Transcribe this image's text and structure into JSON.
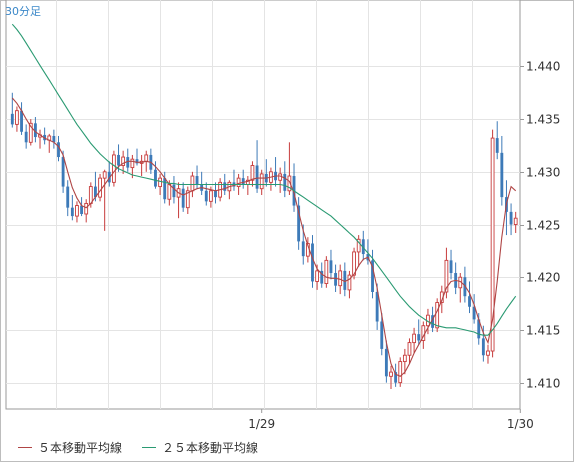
{
  "timeframe_label": "30分足",
  "legend": {
    "ma5": "５本移動平均線",
    "ma25": "２５本移動平均線"
  },
  "colors": {
    "up": "#c73b3b",
    "down": "#3d7ab8",
    "ma5": "#b04545",
    "ma25": "#2a9a72",
    "grid": "#e4e4e4",
    "axis": "#9a9a9a"
  },
  "chart_data": {
    "type": "candlestick",
    "yticks": [
      "1.440",
      "1.435",
      "1.430",
      "1.425",
      "1.420",
      "1.415",
      "1.410"
    ],
    "ylim": [
      1.4075,
      1.4463
    ],
    "xticks": [
      {
        "label": "1/29",
        "index": 54
      },
      {
        "label": "1/30",
        "index": 110
      }
    ],
    "grid": true,
    "legend_placement": "bottom",
    "candles": [
      [
        1.4355,
        1.4375,
        1.4342,
        1.4345
      ],
      [
        1.4345,
        1.4362,
        1.4338,
        1.4358
      ],
      [
        1.4358,
        1.4366,
        1.4335,
        1.4338
      ],
      [
        1.4338,
        1.4345,
        1.4322,
        1.4328
      ],
      [
        1.4328,
        1.435,
        1.4325,
        1.4346
      ],
      [
        1.4346,
        1.4352,
        1.4328,
        1.4333
      ],
      [
        1.4333,
        1.434,
        1.4322,
        1.4335
      ],
      [
        1.4335,
        1.4342,
        1.4326,
        1.433
      ],
      [
        1.433,
        1.4336,
        1.4318,
        1.4334
      ],
      [
        1.4334,
        1.434,
        1.4322,
        1.4328
      ],
      [
        1.4328,
        1.4334,
        1.431,
        1.4314
      ],
      [
        1.4314,
        1.432,
        1.428,
        1.4286
      ],
      [
        1.4286,
        1.4292,
        1.4258,
        1.4266
      ],
      [
        1.4266,
        1.4278,
        1.4254,
        1.4258
      ],
      [
        1.4258,
        1.4272,
        1.4252,
        1.4268
      ],
      [
        1.4268,
        1.4276,
        1.4258,
        1.426
      ],
      [
        1.426,
        1.4274,
        1.4252,
        1.427
      ],
      [
        1.427,
        1.429,
        1.4266,
        1.4286
      ],
      [
        1.4286,
        1.43,
        1.4272,
        1.4276
      ],
      [
        1.4276,
        1.4298,
        1.4272,
        1.4294
      ],
      [
        1.4294,
        1.4302,
        1.4244,
        1.43
      ],
      [
        1.43,
        1.431,
        1.4286,
        1.429
      ],
      [
        1.429,
        1.432,
        1.4286,
        1.4316
      ],
      [
        1.4316,
        1.4326,
        1.43,
        1.4306
      ],
      [
        1.4306,
        1.432,
        1.4298,
        1.4314
      ],
      [
        1.4314,
        1.4322,
        1.43,
        1.4304
      ],
      [
        1.4304,
        1.4316,
        1.4294,
        1.4312
      ],
      [
        1.4312,
        1.4322,
        1.4306,
        1.4308
      ],
      [
        1.4308,
        1.4316,
        1.4296,
        1.431
      ],
      [
        1.431,
        1.432,
        1.43,
        1.4316
      ],
      [
        1.4316,
        1.4322,
        1.4298,
        1.4302
      ],
      [
        1.4302,
        1.431,
        1.4284,
        1.4286
      ],
      [
        1.4286,
        1.4298,
        1.4278,
        1.4294
      ],
      [
        1.4294,
        1.43,
        1.427,
        1.4274
      ],
      [
        1.4274,
        1.4292,
        1.4268,
        1.4288
      ],
      [
        1.4288,
        1.4296,
        1.427,
        1.4276
      ],
      [
        1.4276,
        1.429,
        1.4256,
        1.4284
      ],
      [
        1.4284,
        1.429,
        1.4262,
        1.4266
      ],
      [
        1.4266,
        1.4286,
        1.426,
        1.4282
      ],
      [
        1.4282,
        1.43,
        1.4276,
        1.4296
      ],
      [
        1.4296,
        1.4306,
        1.4284,
        1.4288
      ],
      [
        1.4288,
        1.43,
        1.4278,
        1.4282
      ],
      [
        1.4282,
        1.429,
        1.4268,
        1.4272
      ],
      [
        1.4272,
        1.4286,
        1.4266,
        1.4282
      ],
      [
        1.4282,
        1.429,
        1.427,
        1.4276
      ],
      [
        1.4276,
        1.4294,
        1.4272,
        1.429
      ],
      [
        1.429,
        1.4298,
        1.4278,
        1.4282
      ],
      [
        1.4282,
        1.4292,
        1.4274,
        1.429
      ],
      [
        1.429,
        1.4302,
        1.4282,
        1.4286
      ],
      [
        1.4286,
        1.4298,
        1.4278,
        1.4294
      ],
      [
        1.4294,
        1.4302,
        1.4284,
        1.4288
      ],
      [
        1.4288,
        1.4296,
        1.4278,
        1.4292
      ],
      [
        1.4292,
        1.431,
        1.4286,
        1.4306
      ],
      [
        1.4306,
        1.433,
        1.428,
        1.4284
      ],
      [
        1.4284,
        1.4302,
        1.4278,
        1.4298
      ],
      [
        1.4298,
        1.4312,
        1.4286,
        1.429
      ],
      [
        1.429,
        1.4304,
        1.4282,
        1.43
      ],
      [
        1.43,
        1.4314,
        1.4286,
        1.4292
      ],
      [
        1.4292,
        1.4304,
        1.428,
        1.4298
      ],
      [
        1.4298,
        1.431,
        1.4276,
        1.4282
      ],
      [
        1.4282,
        1.4328,
        1.4278,
        1.4296
      ],
      [
        1.4296,
        1.4308,
        1.4262,
        1.4268
      ],
      [
        1.4268,
        1.4276,
        1.4226,
        1.4234
      ],
      [
        1.4234,
        1.425,
        1.4212,
        1.422
      ],
      [
        1.422,
        1.4238,
        1.4214,
        1.4232
      ],
      [
        1.4232,
        1.424,
        1.419,
        1.4196
      ],
      [
        1.4196,
        1.4212,
        1.4188,
        1.4206
      ],
      [
        1.4206,
        1.4214,
        1.419,
        1.4194
      ],
      [
        1.4194,
        1.422,
        1.419,
        1.4216
      ],
      [
        1.4216,
        1.4226,
        1.4198,
        1.4204
      ],
      [
        1.4204,
        1.4212,
        1.4186,
        1.4192
      ],
      [
        1.4192,
        1.4212,
        1.4184,
        1.4206
      ],
      [
        1.4206,
        1.4214,
        1.4182,
        1.4188
      ],
      [
        1.4188,
        1.4206,
        1.418,
        1.4202
      ],
      [
        1.4202,
        1.4228,
        1.4198,
        1.4224
      ],
      [
        1.4224,
        1.424,
        1.421,
        1.4236
      ],
      [
        1.4236,
        1.4244,
        1.4216,
        1.4222
      ],
      [
        1.4222,
        1.4236,
        1.4212,
        1.4216
      ],
      [
        1.4216,
        1.4226,
        1.418,
        1.4186
      ],
      [
        1.4186,
        1.4194,
        1.415,
        1.4158
      ],
      [
        1.4158,
        1.4166,
        1.4126,
        1.4132
      ],
      [
        1.4132,
        1.414,
        1.41,
        1.4106
      ],
      [
        1.4106,
        1.4116,
        1.4094,
        1.411
      ],
      [
        1.411,
        1.4118,
        1.4096,
        1.41
      ],
      [
        1.41,
        1.4124,
        1.4096,
        1.412
      ],
      [
        1.412,
        1.4132,
        1.4108,
        1.4126
      ],
      [
        1.4126,
        1.4142,
        1.4118,
        1.4138
      ],
      [
        1.4138,
        1.4152,
        1.4128,
        1.4146
      ],
      [
        1.4146,
        1.416,
        1.4136,
        1.414
      ],
      [
        1.414,
        1.4158,
        1.4132,
        1.4154
      ],
      [
        1.4154,
        1.417,
        1.4146,
        1.4164
      ],
      [
        1.4164,
        1.4172,
        1.4148,
        1.4152
      ],
      [
        1.4152,
        1.418,
        1.4148,
        1.4176
      ],
      [
        1.4176,
        1.4192,
        1.4166,
        1.4186
      ],
      [
        1.4186,
        1.4228,
        1.418,
        1.4216
      ],
      [
        1.4216,
        1.4226,
        1.4198,
        1.4204
      ],
      [
        1.4204,
        1.4214,
        1.4184,
        1.419
      ],
      [
        1.419,
        1.4204,
        1.4176,
        1.42
      ],
      [
        1.42,
        1.421,
        1.4176,
        1.4182
      ],
      [
        1.4182,
        1.4196,
        1.4166,
        1.4172
      ],
      [
        1.4172,
        1.4184,
        1.4156,
        1.416
      ],
      [
        1.416,
        1.4166,
        1.4136,
        1.4142
      ],
      [
        1.4142,
        1.4154,
        1.412,
        1.4126
      ],
      [
        1.4126,
        1.4136,
        1.4118,
        1.413
      ],
      [
        1.413,
        1.434,
        1.4124,
        1.4332
      ],
      [
        1.4332,
        1.4348,
        1.4312,
        1.4318
      ],
      [
        1.4318,
        1.4334,
        1.4268,
        1.4276
      ],
      [
        1.4276,
        1.4292,
        1.424,
        1.4262
      ],
      [
        1.4262,
        1.427,
        1.424,
        1.425
      ],
      [
        1.425,
        1.4262,
        1.4242,
        1.4256
      ]
    ],
    "series": [
      {
        "name": "５本移動平均線",
        "values": [
          1.437,
          1.4365,
          1.4358,
          1.435,
          1.4343,
          1.4338,
          1.4335,
          1.4332,
          1.433,
          1.4328,
          1.4324,
          1.4316,
          1.43,
          1.4285,
          1.4275,
          1.4268,
          1.4266,
          1.427,
          1.4276,
          1.4282,
          1.4288,
          1.4294,
          1.43,
          1.4305,
          1.4308,
          1.431,
          1.431,
          1.4309,
          1.4309,
          1.431,
          1.4309,
          1.4305,
          1.43,
          1.4294,
          1.4288,
          1.4284,
          1.428,
          1.4278,
          1.428,
          1.4282,
          1.4284,
          1.4285,
          1.4284,
          1.4283,
          1.4282,
          1.4283,
          1.4284,
          1.4286,
          1.4287,
          1.4289,
          1.429,
          1.4291,
          1.4293,
          1.4294,
          1.4294,
          1.4294,
          1.4295,
          1.4296,
          1.4296,
          1.4294,
          1.4291,
          1.428,
          1.4262,
          1.4244,
          1.423,
          1.4218,
          1.4208,
          1.4203,
          1.42,
          1.4199,
          1.4199,
          1.4198,
          1.4196,
          1.4198,
          1.4203,
          1.4211,
          1.4217,
          1.4219,
          1.421,
          1.419,
          1.4164,
          1.4138,
          1.4118,
          1.4108,
          1.4106,
          1.411,
          1.4118,
          1.4128,
          1.4136,
          1.4144,
          1.4152,
          1.416,
          1.4168,
          1.4178,
          1.419,
          1.4196,
          1.4197,
          1.4196,
          1.4192,
          1.4185,
          1.4174,
          1.416,
          1.4147,
          1.4138,
          1.416,
          1.4196,
          1.4238,
          1.427,
          1.4286,
          1.4282
        ]
      },
      {
        "name": "２５本移動平均線",
        "values": [
          1.444,
          1.4435,
          1.4429,
          1.4422,
          1.4415,
          1.4408,
          1.4401,
          1.4394,
          1.4387,
          1.438,
          1.4373,
          1.4366,
          1.4359,
          1.4352,
          1.4345,
          1.4339,
          1.4333,
          1.4327,
          1.4322,
          1.4317,
          1.4313,
          1.4309,
          1.4306,
          1.4303,
          1.4301,
          1.4299,
          1.4297,
          1.4296,
          1.4295,
          1.4294,
          1.4293,
          1.4292,
          1.4291,
          1.429,
          1.4289,
          1.4289,
          1.4288,
          1.4288,
          1.4288,
          1.4288,
          1.4288,
          1.4288,
          1.4288,
          1.4288,
          1.4288,
          1.4288,
          1.4288,
          1.4288,
          1.4288,
          1.4288,
          1.4288,
          1.4288,
          1.4288,
          1.4288,
          1.4288,
          1.4288,
          1.4288,
          1.4288,
          1.4288,
          1.4287,
          1.4285,
          1.4282,
          1.4279,
          1.4276,
          1.4273,
          1.427,
          1.4267,
          1.4264,
          1.4261,
          1.4258,
          1.4254,
          1.425,
          1.4246,
          1.4242,
          1.4238,
          1.4233,
          1.4228,
          1.4223,
          1.4218,
          1.4212,
          1.4206,
          1.42,
          1.4194,
          1.4188,
          1.4182,
          1.4177,
          1.4172,
          1.4168,
          1.4164,
          1.4161,
          1.4158,
          1.4156,
          1.4154,
          1.4153,
          1.4152,
          1.4152,
          1.4152,
          1.4151,
          1.415,
          1.4149,
          1.4148,
          1.4146,
          1.4145,
          1.4145,
          1.415,
          1.4156,
          1.4163,
          1.417,
          1.4176,
          1.4182
        ]
      }
    ]
  }
}
